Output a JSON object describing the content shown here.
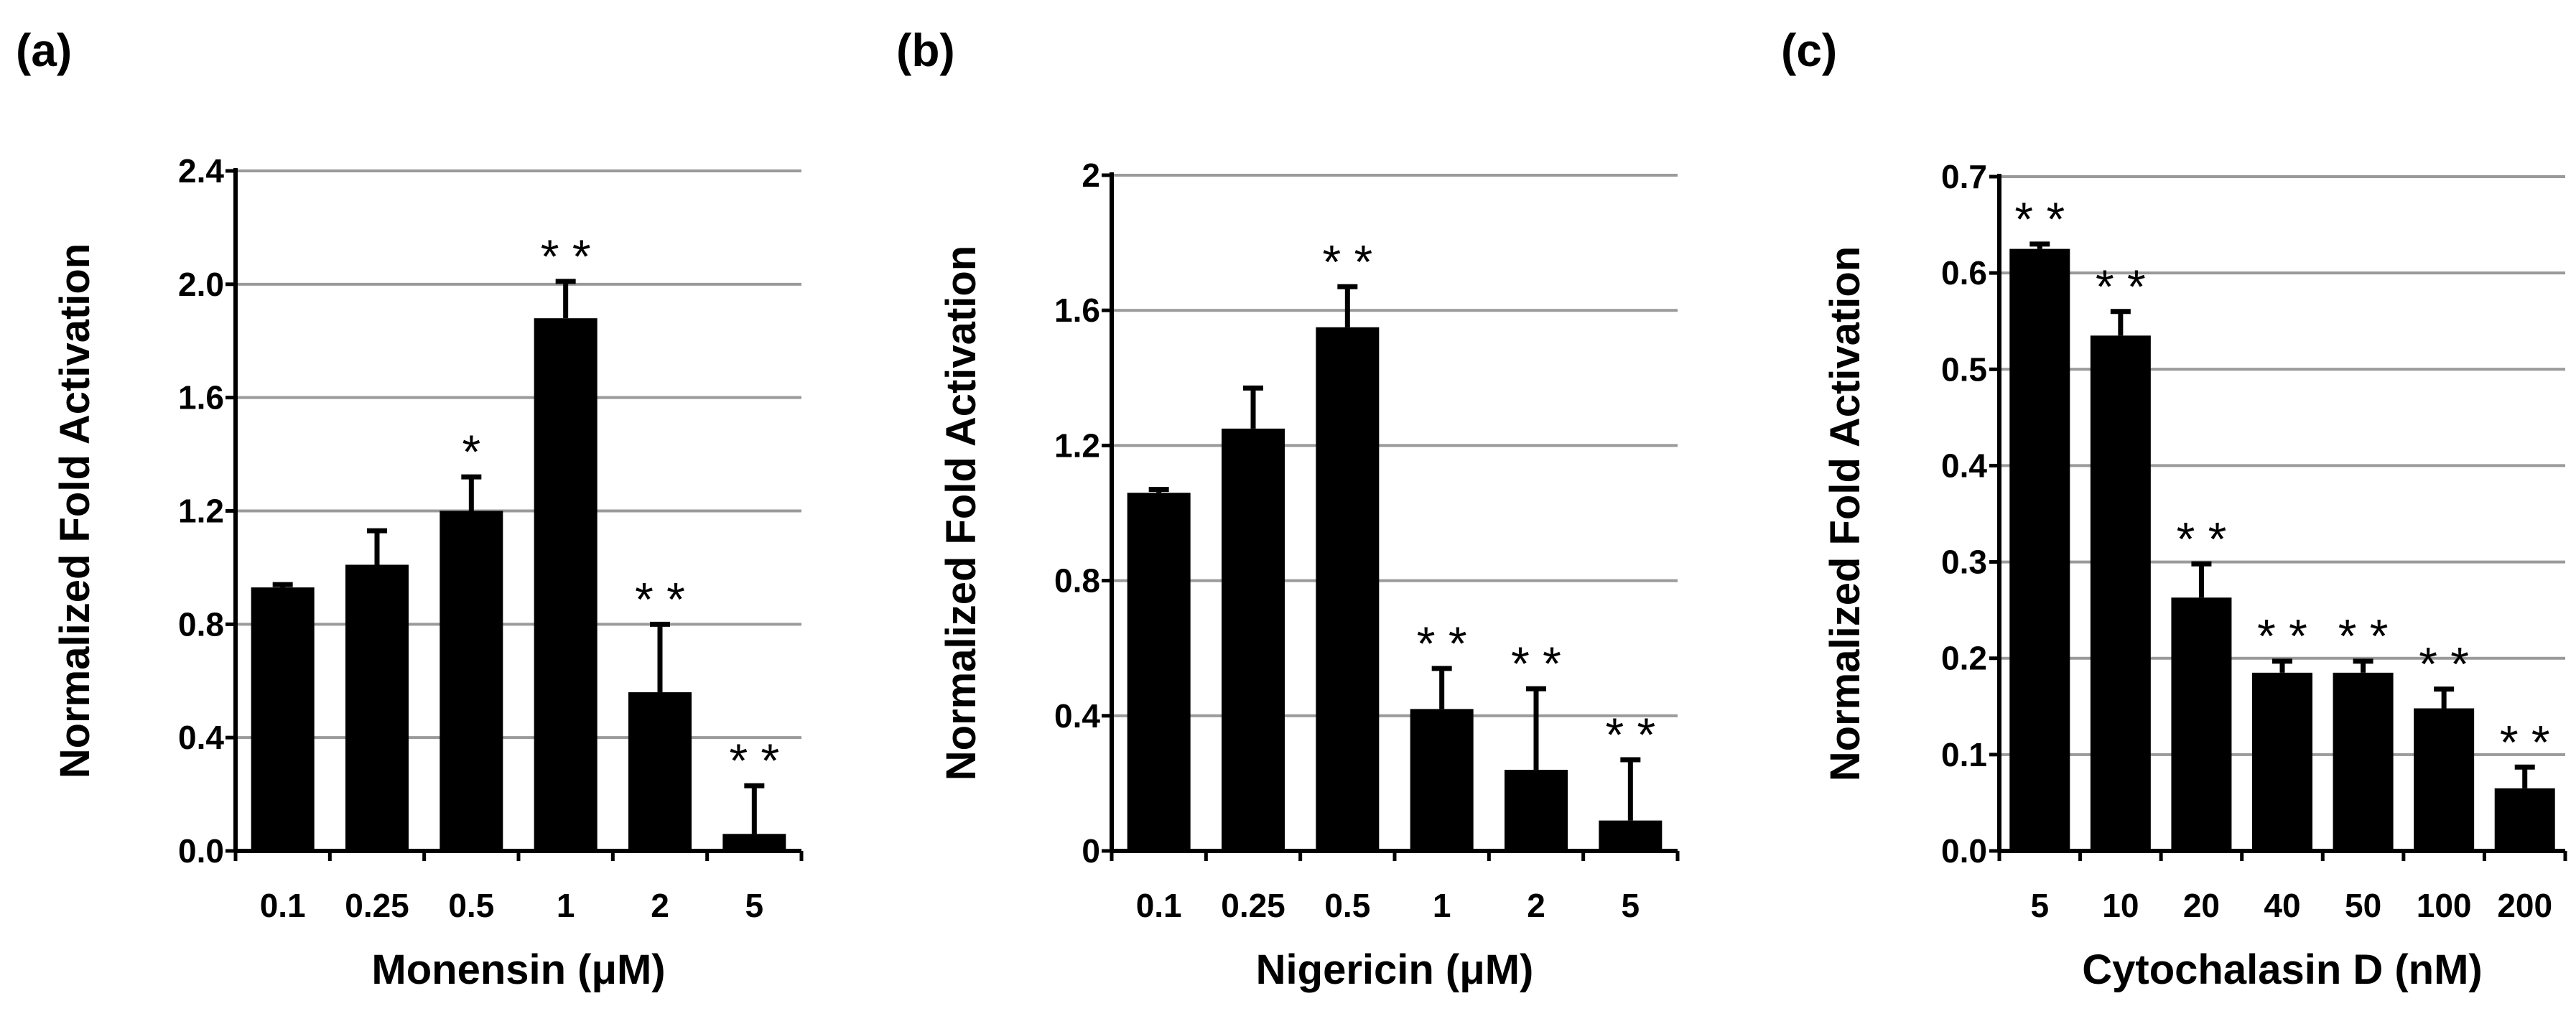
{
  "chart_data": [
    {
      "type": "bar",
      "panel_label": "(a)",
      "xlabel": "Monensin (μM)",
      "ylabel": "Normalized Fold Activation",
      "categories": [
        "0.1",
        "0.25",
        "0.5",
        "1",
        "2",
        "5"
      ],
      "values": [
        0.93,
        1.01,
        1.2,
        1.88,
        0.56,
        0.06
      ],
      "errors": [
        0.01,
        0.12,
        0.12,
        0.13,
        0.24,
        0.17
      ],
      "significance": [
        "",
        "",
        "*",
        "**",
        "**",
        "**"
      ],
      "ylim": [
        0,
        2.4
      ],
      "yticks": [
        "0.0",
        "0.4",
        "0.8",
        "1.2",
        "1.6",
        "2.0",
        "2.4"
      ],
      "grid": true
    },
    {
      "type": "bar",
      "panel_label": "(b)",
      "xlabel": "Nigericin (μM)",
      "ylabel": "Normalized Fold Activation",
      "categories": [
        "0.1",
        "0.25",
        "0.5",
        "1",
        "2",
        "5"
      ],
      "values": [
        1.06,
        1.25,
        1.55,
        0.42,
        0.24,
        0.09
      ],
      "errors": [
        0.01,
        0.12,
        0.12,
        0.12,
        0.24,
        0.18
      ],
      "significance": [
        "",
        "",
        "**",
        "**",
        "**",
        "**"
      ],
      "ylim": [
        0,
        2
      ],
      "yticks": [
        "0",
        "0.4",
        "0.8",
        "1.2",
        "1.6",
        "2"
      ],
      "grid": true
    },
    {
      "type": "bar",
      "panel_label": "(c)",
      "xlabel": "Cytochalasin D (nM)",
      "ylabel": "Normalized Fold Activation",
      "categories": [
        "5",
        "10",
        "20",
        "40",
        "50",
        "100",
        "200"
      ],
      "values": [
        0.625,
        0.535,
        0.263,
        0.185,
        0.185,
        0.148,
        0.065
      ],
      "errors": [
        0.005,
        0.025,
        0.035,
        0.012,
        0.012,
        0.02,
        0.022
      ],
      "significance": [
        "**",
        "**",
        "**",
        "**",
        "**",
        "**",
        "**"
      ],
      "ylim": [
        0,
        0.7
      ],
      "yticks": [
        "0.0",
        "0.1",
        "0.2",
        "0.3",
        "0.4",
        "0.5",
        "0.6",
        "0.7"
      ],
      "grid": true
    }
  ]
}
